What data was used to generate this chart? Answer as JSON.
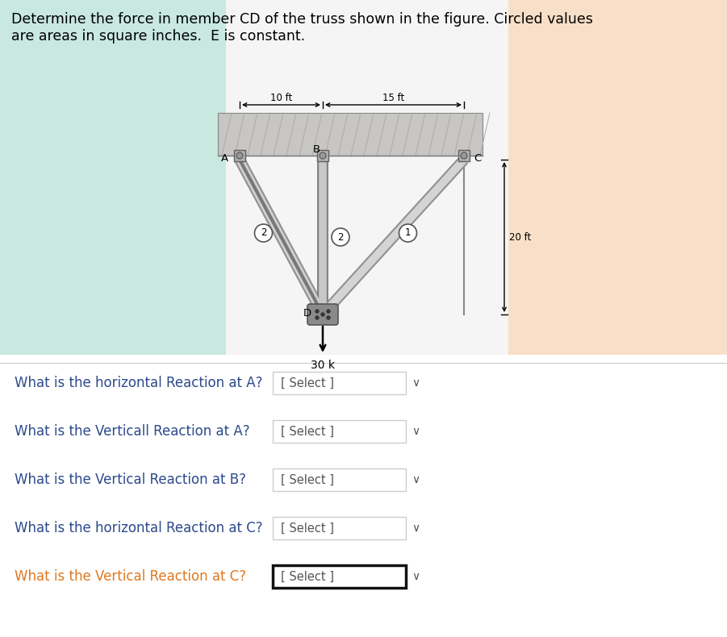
{
  "title_line1": "Determine the force in member CD of the truss shown in the figure. Circled values",
  "title_line2": "are areas in square inches.  E is constant.",
  "truss": {
    "dim_10ft": "10 ft",
    "dim_15ft": "15 ft",
    "dim_20ft": "20 ft",
    "load": "30 k",
    "member_AD_area": "2",
    "member_BD_area": "2",
    "member_CD_area": "1"
  },
  "questions": [
    {
      "text": "What is the horizontal Reaction at A?",
      "label": "[ Select ]",
      "highlight": false,
      "color_orange": false
    },
    {
      "text": "What is the Verticall Reaction at A?",
      "label": "[ Select ]",
      "highlight": false,
      "color_orange": false
    },
    {
      "text": "What is the Vertical Reaction at B?",
      "label": "[ Select ]",
      "highlight": false,
      "color_orange": false
    },
    {
      "text": "What is the horizontal Reaction at C?",
      "label": "[ Select ]",
      "highlight": false,
      "color_orange": false
    },
    {
      "text": "What is the Vertical Reaction at C?",
      "label": "[ Select ]",
      "highlight": true,
      "color_orange": true
    }
  ],
  "question_text_color": "#2c4a8c",
  "question_highlight_color": "#e07820",
  "select_text_color": "#555555",
  "concrete_color": "#c8c6c4",
  "concrete_hatch_color": "#aaaaaa",
  "member_outer_color": "#909090",
  "member_inner_color": "#b8b8b8",
  "member_bd_outer": "#808080",
  "member_bd_inner": "#c0c0c0",
  "bg_teal": "#c8e8e0",
  "bg_peach": "#f8e0c8",
  "bg_white_mid": "#f8f8f8"
}
